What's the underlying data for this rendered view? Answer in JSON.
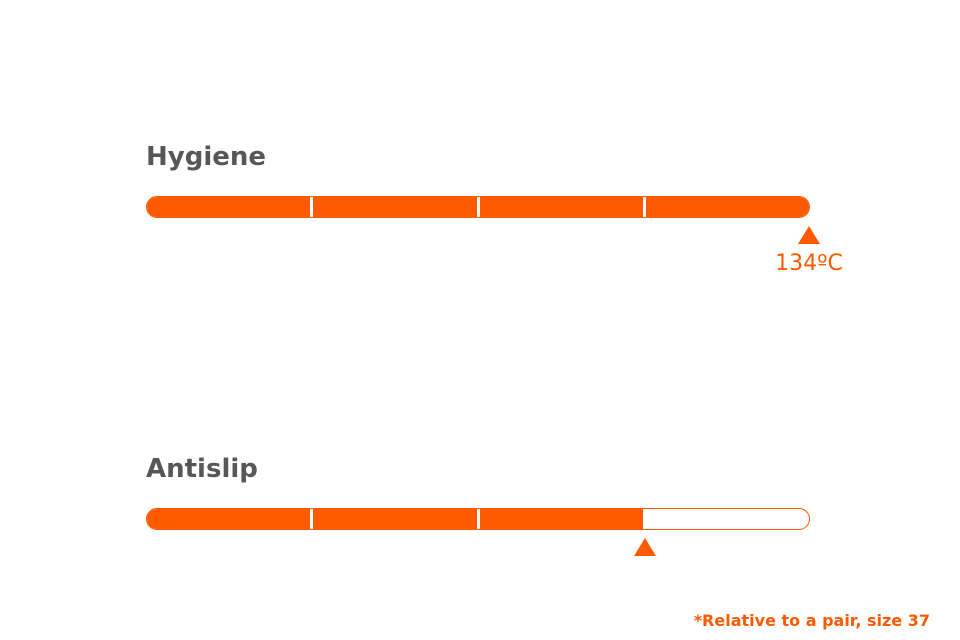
{
  "accent_color": "#ff5a00",
  "title_color": "#575757",
  "metrics": [
    {
      "title": "Hygiene",
      "level": 4,
      "max_level": 4,
      "marker_label": "134ºC"
    },
    {
      "title": "Antislip",
      "level": 3,
      "max_level": 4
    }
  ],
  "footnote": "*Relative to a pair, size 37"
}
